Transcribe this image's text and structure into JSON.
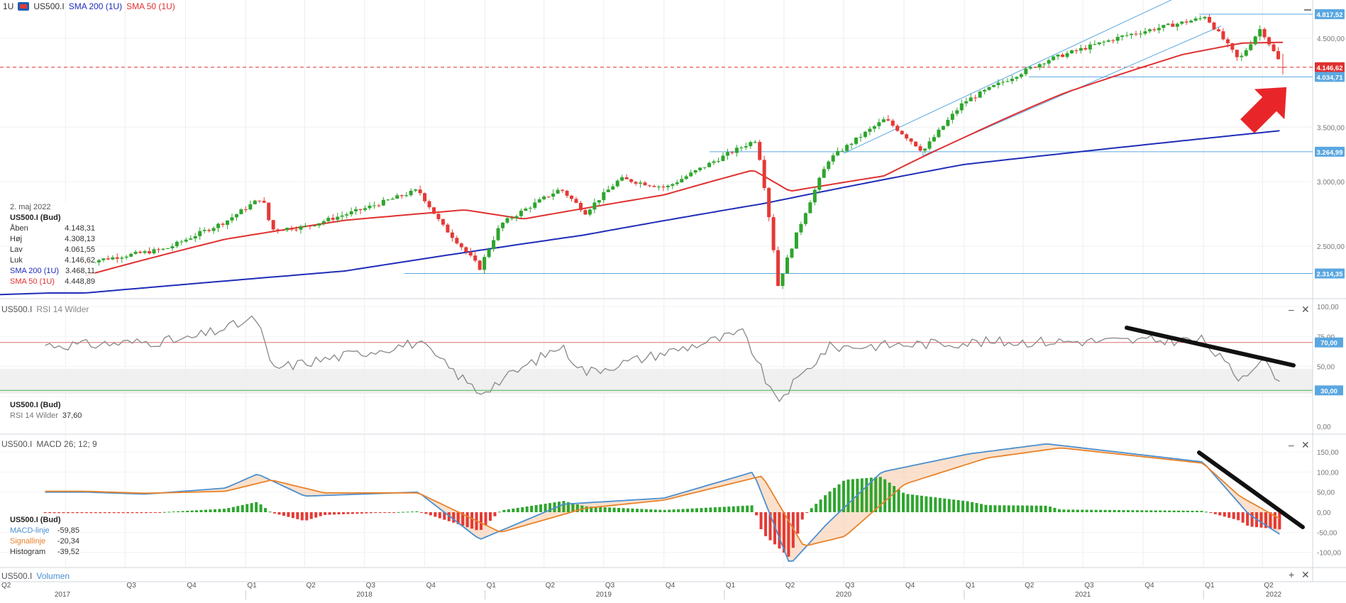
{
  "header": {
    "timeframe": "1U",
    "symbol": "US500.I",
    "sma200_label": "SMA 200 (1U)",
    "sma50_label": "SMA 50 (1U)"
  },
  "colors": {
    "up": "#2ea52e",
    "down": "#e53935",
    "sma200": "#1f2db8",
    "sma50": "#e03030",
    "channel": "#5aa7e0",
    "rsi": "#888888",
    "macd": "#4a8fd0",
    "signal": "#e8822a",
    "arrow": "#e8262a"
  },
  "infobox": {
    "date": "2. maj 2022",
    "instrument": "US500.I (Bud)",
    "rows": [
      {
        "label": "Åben",
        "value": "4.148,31"
      },
      {
        "label": "Høj",
        "value": "4.308,13"
      },
      {
        "label": "Lav",
        "value": "4.061,55"
      },
      {
        "label": "Luk",
        "value": "4.146,62"
      },
      {
        "label": "SMA 200 (1U)",
        "value": "3.468,11"
      },
      {
        "label": "SMA 50 (1U)",
        "value": "4.448,89"
      }
    ]
  },
  "rsi_panel": {
    "title": "US500.I",
    "name": "RSI 14 Wilder",
    "info_instrument": "US500.I (Bud)",
    "info_label": "RSI 14 Wilder",
    "info_value": "37,60"
  },
  "macd_panel": {
    "title": "US500.I",
    "name": "MACD 26; 12; 9",
    "info_instrument": "US500.I (Bud)",
    "rows": [
      {
        "label": "MACD-linje",
        "value": "-59,85"
      },
      {
        "label": "Signallinje",
        "value": "-20,34"
      },
      {
        "label": "Histogram",
        "value": "-39,52"
      }
    ]
  },
  "volume_panel": {
    "title": "US500.I",
    "name": "Volumen"
  },
  "controls": {
    "minimize": "–",
    "close": "✕",
    "add": "+"
  },
  "chart_data": [
    {
      "type": "candlestick",
      "title": "US500.I",
      "timeframe": "1U",
      "x_quarters": [
        "Q2",
        "Q3",
        "Q4",
        "Q1",
        "Q2",
        "Q3",
        "Q4",
        "Q1",
        "Q2",
        "Q3",
        "Q4",
        "Q1",
        "Q2",
        "Q3",
        "Q4",
        "Q1",
        "Q2",
        "Q3",
        "Q4",
        "Q1",
        "Q2"
      ],
      "x_years": [
        "2017",
        "2018",
        "2019",
        "2020",
        "2021",
        "2022"
      ],
      "y_ticks": [
        "2.500,00",
        "3.000,00",
        "3.500,00",
        "4.500,00"
      ],
      "ylim": [
        2200,
        4900
      ],
      "price_labels": [
        "4.817,52",
        "4.146,62",
        "4.034,71",
        "3.264,99",
        "2.314,35"
      ],
      "close_anchors": [
        {
          "t": "2017-05-01",
          "close": 2390
        },
        {
          "t": "2017-09-01",
          "close": 2480
        },
        {
          "t": "2017-12-01",
          "close": 2680
        },
        {
          "t": "2018-01-26",
          "close": 2870
        },
        {
          "t": "2018-02-09",
          "close": 2620
        },
        {
          "t": "2018-04-01",
          "close": 2640
        },
        {
          "t": "2018-07-01",
          "close": 2780
        },
        {
          "t": "2018-09-21",
          "close": 2930
        },
        {
          "t": "2018-10-26",
          "close": 2660
        },
        {
          "t": "2018-12-24",
          "close": 2350
        },
        {
          "t": "2019-01-25",
          "close": 2660
        },
        {
          "t": "2019-04-26",
          "close": 2940
        },
        {
          "t": "2019-06-03",
          "close": 2750
        },
        {
          "t": "2019-07-26",
          "close": 3025
        },
        {
          "t": "2019-10-04",
          "close": 2950
        },
        {
          "t": "2020-02-19",
          "close": 3380
        },
        {
          "t": "2020-03-23",
          "close": 2237
        },
        {
          "t": "2020-06-08",
          "close": 3190
        },
        {
          "t": "2020-09-02",
          "close": 3580
        },
        {
          "t": "2020-10-30",
          "close": 3270
        },
        {
          "t": "2020-12-31",
          "close": 3756
        },
        {
          "t": "2021-05-07",
          "close": 4230
        },
        {
          "t": "2021-09-03",
          "close": 4535
        },
        {
          "t": "2021-12-31",
          "close": 4766
        },
        {
          "t": "2022-01-03",
          "close": 4796
        },
        {
          "t": "2022-02-24",
          "close": 4225
        },
        {
          "t": "2022-03-29",
          "close": 4630
        },
        {
          "t": "2022-04-22",
          "close": 4272
        },
        {
          "t": "2022-05-02",
          "close": 4146.62
        }
      ],
      "last_bar": {
        "date": "2. maj 2022",
        "open": 4148.31,
        "high": 4308.13,
        "low": 4061.55,
        "close": 4146.62
      },
      "sma200_last": 3468.11,
      "sma50_last": 4448.89,
      "horizontal_levels": [
        4817.52,
        4146.62,
        4034.71,
        3264.99,
        2314.35
      ]
    },
    {
      "type": "line",
      "title": "RSI 14 Wilder",
      "y_ticks": [
        "100,00",
        "75,00",
        "50,00",
        "0,00"
      ],
      "ylim": [
        0,
        100
      ],
      "overbought": 70,
      "oversold": 30,
      "level_labels": [
        "70,00",
        "30,00"
      ],
      "last": 37.6,
      "anchors": [
        {
          "t": "2017-05-01",
          "v": 68
        },
        {
          "t": "2017-10-01",
          "v": 72
        },
        {
          "t": "2018-01-19",
          "v": 90
        },
        {
          "t": "2018-02-09",
          "v": 48
        },
        {
          "t": "2018-09-21",
          "v": 70
        },
        {
          "t": "2018-12-24",
          "v": 28
        },
        {
          "t": "2019-04-26",
          "v": 67
        },
        {
          "t": "2019-06-03",
          "v": 45
        },
        {
          "t": "2020-01-31",
          "v": 78
        },
        {
          "t": "2020-03-20",
          "v": 20
        },
        {
          "t": "2020-06-08",
          "v": 66
        },
        {
          "t": "2021-01-01",
          "v": 70
        },
        {
          "t": "2021-12-31",
          "v": 72
        },
        {
          "t": "2022-02-24",
          "v": 40
        },
        {
          "t": "2022-03-29",
          "v": 56
        },
        {
          "t": "2022-05-02",
          "v": 37.6
        }
      ]
    },
    {
      "type": "line",
      "title": "MACD 26; 12; 9",
      "y_ticks": [
        "150,00",
        "100,00",
        "50,00",
        "0,00",
        "-50,00",
        "-100,00"
      ],
      "ylim": [
        -150,
        180
      ],
      "series": [
        {
          "name": "MACD-linje"
        },
        {
          "name": "Signallinje"
        },
        {
          "name": "Histogram"
        }
      ],
      "last": {
        "macd": -59.85,
        "signal": -20.34,
        "histogram": -39.52
      },
      "macd_anchors": [
        {
          "t": "2017-05-01",
          "v": 50
        },
        {
          "t": "2017-08-01",
          "v": 45
        },
        {
          "t": "2017-12-01",
          "v": 60
        },
        {
          "t": "2018-01-19",
          "v": 95
        },
        {
          "t": "2018-04-01",
          "v": 40
        },
        {
          "t": "2018-09-21",
          "v": 50
        },
        {
          "t": "2018-12-24",
          "v": -68
        },
        {
          "t": "2019-05-01",
          "v": 20
        },
        {
          "t": "2019-10-01",
          "v": 35
        },
        {
          "t": "2020-02-14",
          "v": 100
        },
        {
          "t": "2020-04-10",
          "v": -130
        },
        {
          "t": "2020-06-05",
          "v": -30
        },
        {
          "t": "2020-08-28",
          "v": 100
        },
        {
          "t": "2021-01-08",
          "v": 145
        },
        {
          "t": "2021-05-07",
          "v": 170
        },
        {
          "t": "2021-12-31",
          "v": 125
        },
        {
          "t": "2022-03-11",
          "v": -5
        },
        {
          "t": "2022-05-02",
          "v": -59.85
        }
      ],
      "signal_anchors": [
        {
          "t": "2017-05-01",
          "v": 52
        },
        {
          "t": "2017-08-01",
          "v": 47
        },
        {
          "t": "2017-12-01",
          "v": 52
        },
        {
          "t": "2018-02-09",
          "v": 80
        },
        {
          "t": "2018-05-01",
          "v": 48
        },
        {
          "t": "2018-09-21",
          "v": 48
        },
        {
          "t": "2019-01-25",
          "v": -50
        },
        {
          "t": "2019-06-03",
          "v": 10
        },
        {
          "t": "2019-10-01",
          "v": 30
        },
        {
          "t": "2020-02-28",
          "v": 90
        },
        {
          "t": "2020-05-01",
          "v": -85
        },
        {
          "t": "2020-07-03",
          "v": -60
        },
        {
          "t": "2020-10-02",
          "v": 70
        },
        {
          "t": "2021-02-05",
          "v": 135
        },
        {
          "t": "2021-05-28",
          "v": 160
        },
        {
          "t": "2021-12-31",
          "v": 122
        },
        {
          "t": "2022-02-25",
          "v": 40
        },
        {
          "t": "2022-05-02",
          "v": -20.34
        }
      ]
    }
  ]
}
